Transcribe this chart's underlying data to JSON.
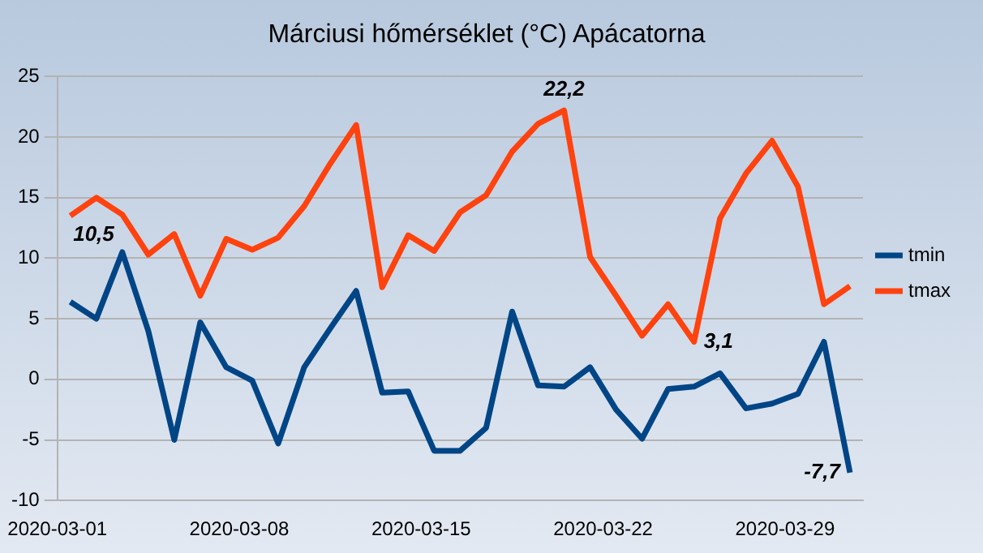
{
  "chart_data": {
    "type": "line",
    "title": "Márciusi hőmérséklet (°C) Apácatorna",
    "x": [
      "2020-03-01T12:00",
      "2020-03-02T12:00",
      "2020-03-03T12:00",
      "2020-03-04T12:00",
      "2020-03-05T12:00",
      "2020-03-06T12:00",
      "2020-03-07T12:00",
      "2020-03-08T12:00",
      "2020-03-09T12:00",
      "2020-03-10T12:00",
      "2020-03-11T12:00",
      "2020-03-12T12:00",
      "2020-03-13T12:00",
      "2020-03-14T12:00",
      "2020-03-15T12:00",
      "2020-03-16T12:00",
      "2020-03-17T12:00",
      "2020-03-18T12:00",
      "2020-03-19T12:00",
      "2020-03-20T12:00",
      "2020-03-21T12:00",
      "2020-03-22T12:00",
      "2020-03-23T12:00",
      "2020-03-24T12:00",
      "2020-03-25T12:00",
      "2020-03-26T12:00",
      "2020-03-27T12:00",
      "2020-03-28T12:00",
      "2020-03-29T12:00",
      "2020-03-30T12:00",
      "2020-03-31T12:00"
    ],
    "series": [
      {
        "name": "tmin",
        "color": "#004586",
        "values": [
          6.4,
          5.0,
          10.5,
          4.0,
          -5.0,
          4.7,
          1.0,
          -0.1,
          -5.3,
          1.0,
          4.2,
          7.3,
          -1.1,
          -1.0,
          -5.9,
          -5.9,
          -4.0,
          5.6,
          -0.5,
          -0.6,
          1.0,
          -2.5,
          -4.9,
          -0.8,
          -0.6,
          0.5,
          -2.4,
          -2.0,
          -1.2,
          3.1,
          -7.7
        ],
        "value_labels": [
          null,
          null,
          "10,5",
          null,
          null,
          null,
          null,
          null,
          null,
          null,
          null,
          null,
          null,
          null,
          null,
          null,
          null,
          null,
          null,
          null,
          null,
          null,
          null,
          null,
          null,
          null,
          null,
          null,
          null,
          null,
          "-7,7"
        ]
      },
      {
        "name": "tmax",
        "color": "#ff420e",
        "values": [
          13.5,
          15.0,
          13.6,
          10.3,
          12.0,
          6.9,
          11.6,
          10.7,
          11.7,
          14.3,
          17.8,
          21.0,
          7.6,
          11.9,
          10.6,
          13.8,
          15.2,
          18.8,
          21.1,
          22.2,
          10.1,
          6.9,
          3.6,
          6.2,
          3.1,
          13.3,
          17.0,
          19.7,
          15.9,
          6.2,
          7.7
        ],
        "value_labels": [
          null,
          null,
          null,
          null,
          null,
          null,
          null,
          null,
          null,
          null,
          null,
          null,
          null,
          null,
          null,
          null,
          null,
          null,
          null,
          "22,2",
          null,
          null,
          null,
          null,
          "3,1",
          null,
          null,
          null,
          null,
          null,
          null
        ]
      }
    ],
    "xlim": [
      "2020-03-01",
      "2020-04-01"
    ],
    "xticks": [
      "2020-03-01",
      "2020-03-08",
      "2020-03-15",
      "2020-03-22",
      "2020-03-29"
    ],
    "ylim": [
      -10,
      25
    ],
    "yticks": [
      -10,
      -5,
      0,
      5,
      10,
      15,
      20,
      25
    ],
    "grid": "y",
    "legend": "right",
    "marker": "none",
    "line_style": "solid"
  }
}
